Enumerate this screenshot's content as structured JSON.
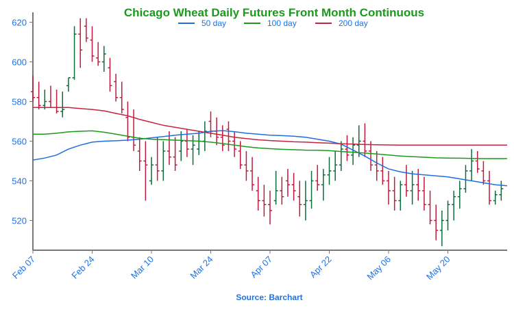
{
  "chart_data": {
    "type": "ohlc",
    "title": "Chicago Wheat Daily Futures Front Month Continuous",
    "source": "Source: Barchart",
    "ylim": [
      505,
      625
    ],
    "y_ticks": [
      520,
      540,
      560,
      580,
      600,
      620
    ],
    "x_range": [
      0,
      80
    ],
    "x_ticks": [
      {
        "label": "Feb 07",
        "x": 0
      },
      {
        "label": "Feb 24",
        "x": 10
      },
      {
        "label": "Mar 10",
        "x": 20
      },
      {
        "label": "Mar 24",
        "x": 30
      },
      {
        "label": "Apr 07",
        "x": 40
      },
      {
        "label": "Apr 22",
        "x": 50
      },
      {
        "label": "May 06",
        "x": 60
      },
      {
        "label": "May 20",
        "x": 70
      }
    ],
    "grid": false,
    "legend_position": "top-center",
    "colors": {
      "title": "#1a9a1a",
      "axis_text": "#1a73e8",
      "up_bar": "#0b6b3a",
      "down_bar": "#c0183c",
      "axis_line": "#777777",
      "source_text": "#1a73e8"
    },
    "series": [
      {
        "name": "50 day",
        "color": "#1a6ee0",
        "values": [
          [
            0,
            550.5
          ],
          [
            2,
            551.5
          ],
          [
            4,
            553
          ],
          [
            6,
            556
          ],
          [
            8,
            558
          ],
          [
            10,
            559.5
          ],
          [
            12,
            560
          ],
          [
            14,
            560.2
          ],
          [
            16,
            560.5
          ],
          [
            18,
            561
          ],
          [
            20,
            561.7
          ],
          [
            22,
            562.3
          ],
          [
            24,
            563
          ],
          [
            26,
            563.5
          ],
          [
            28,
            564
          ],
          [
            30,
            565
          ],
          [
            32,
            565.3
          ],
          [
            34,
            564.8
          ],
          [
            36,
            564
          ],
          [
            38,
            563.5
          ],
          [
            40,
            563
          ],
          [
            42,
            562.8
          ],
          [
            44,
            562.5
          ],
          [
            46,
            562
          ],
          [
            48,
            561
          ],
          [
            50,
            560
          ],
          [
            52,
            558.5
          ],
          [
            54,
            555.5
          ],
          [
            56,
            552.5
          ],
          [
            58,
            549
          ],
          [
            60,
            546
          ],
          [
            62,
            544.5
          ],
          [
            64,
            543.5
          ],
          [
            66,
            543
          ],
          [
            68,
            542.5
          ],
          [
            70,
            542
          ],
          [
            72,
            541
          ],
          [
            74,
            540
          ],
          [
            76,
            539
          ],
          [
            78,
            538
          ],
          [
            80,
            537.5
          ]
        ]
      },
      {
        "name": "100 day",
        "color": "#1a9a1a",
        "values": [
          [
            0,
            563.5
          ],
          [
            2,
            563.5
          ],
          [
            4,
            564
          ],
          [
            6,
            564.7
          ],
          [
            8,
            565
          ],
          [
            10,
            565.2
          ],
          [
            12,
            564.5
          ],
          [
            14,
            563.5
          ],
          [
            16,
            562.5
          ],
          [
            18,
            561.5
          ],
          [
            20,
            561
          ],
          [
            22,
            560.8
          ],
          [
            24,
            560.5
          ],
          [
            26,
            560.3
          ],
          [
            28,
            560
          ],
          [
            30,
            559.5
          ],
          [
            32,
            558.8
          ],
          [
            34,
            558
          ],
          [
            36,
            557.2
          ],
          [
            38,
            556.6
          ],
          [
            40,
            556.2
          ],
          [
            42,
            555.9
          ],
          [
            44,
            555.7
          ],
          [
            46,
            555.5
          ],
          [
            48,
            555.4
          ],
          [
            50,
            555.2
          ],
          [
            52,
            554.8
          ],
          [
            54,
            554.4
          ],
          [
            56,
            554
          ],
          [
            58,
            553.5
          ],
          [
            60,
            553
          ],
          [
            62,
            552.5
          ],
          [
            64,
            552.2
          ],
          [
            66,
            551.9
          ],
          [
            68,
            551.6
          ],
          [
            70,
            551.5
          ],
          [
            72,
            551.4
          ],
          [
            74,
            551.3
          ],
          [
            76,
            551.2
          ],
          [
            78,
            551.2
          ],
          [
            80,
            551.2
          ]
        ]
      },
      {
        "name": "200 day",
        "color": "#c8203f",
        "values": [
          [
            0,
            577
          ],
          [
            2,
            577
          ],
          [
            4,
            577
          ],
          [
            6,
            577
          ],
          [
            8,
            576.5
          ],
          [
            10,
            576
          ],
          [
            12,
            575.3
          ],
          [
            14,
            574
          ],
          [
            16,
            572.8
          ],
          [
            18,
            571
          ],
          [
            20,
            569.5
          ],
          [
            22,
            568
          ],
          [
            24,
            567
          ],
          [
            26,
            566
          ],
          [
            28,
            565
          ],
          [
            30,
            564
          ],
          [
            32,
            563
          ],
          [
            34,
            562
          ],
          [
            36,
            561.3
          ],
          [
            38,
            560.7
          ],
          [
            40,
            560.3
          ],
          [
            42,
            560
          ],
          [
            44,
            559.7
          ],
          [
            46,
            559.5
          ],
          [
            48,
            559.2
          ],
          [
            50,
            559
          ],
          [
            52,
            558.7
          ],
          [
            54,
            558.5
          ],
          [
            56,
            558.3
          ],
          [
            58,
            558.2
          ],
          [
            60,
            558.1
          ],
          [
            62,
            558
          ],
          [
            64,
            558
          ],
          [
            66,
            558
          ],
          [
            68,
            558
          ],
          [
            70,
            558
          ],
          [
            72,
            558
          ],
          [
            74,
            558
          ],
          [
            76,
            558
          ],
          [
            78,
            558
          ],
          [
            80,
            558
          ]
        ]
      }
    ],
    "ohlc": [
      [
        0,
        585,
        593,
        580,
        582
      ],
      [
        1,
        582,
        590,
        576,
        578
      ],
      [
        2,
        578,
        586,
        576,
        580
      ],
      [
        3,
        580,
        588,
        577,
        577
      ],
      [
        4,
        577,
        586,
        574,
        575
      ],
      [
        5,
        575,
        585,
        572,
        576
      ],
      [
        6,
        588,
        592,
        585,
        592
      ],
      [
        7,
        592,
        618,
        591,
        614
      ],
      [
        8,
        614,
        622,
        597,
        606
      ],
      [
        9,
        618,
        622,
        610,
        612
      ],
      [
        10,
        611,
        618,
        600,
        603
      ],
      [
        11,
        602,
        610,
        598,
        600
      ],
      [
        12,
        600,
        608,
        595,
        604
      ],
      [
        13,
        597,
        602,
        585,
        588
      ],
      [
        14,
        590,
        594,
        580,
        582
      ],
      [
        15,
        582,
        590,
        574,
        576
      ],
      [
        16,
        572,
        580,
        560,
        562
      ],
      [
        17,
        562,
        576,
        555,
        558
      ],
      [
        18,
        555,
        562,
        545,
        550
      ],
      [
        19,
        550,
        560,
        530,
        548
      ],
      [
        20,
        540,
        552,
        538,
        548
      ],
      [
        21,
        548,
        562,
        540,
        545
      ],
      [
        22,
        545,
        560,
        540,
        555
      ],
      [
        23,
        555,
        565,
        548,
        552
      ],
      [
        24,
        552,
        562,
        545,
        548
      ],
      [
        25,
        555,
        565,
        550,
        560
      ],
      [
        26,
        560,
        566,
        552,
        556
      ],
      [
        27,
        556,
        563,
        548,
        558
      ],
      [
        28,
        556,
        565,
        553,
        560
      ],
      [
        29,
        560,
        570,
        555,
        565
      ],
      [
        30,
        570,
        575,
        562,
        565
      ],
      [
        31,
        565,
        572,
        558,
        562
      ],
      [
        32,
        562,
        568,
        555,
        558
      ],
      [
        33,
        566,
        570,
        555,
        560
      ],
      [
        34,
        560,
        565,
        552,
        556
      ],
      [
        35,
        555,
        560,
        546,
        548
      ],
      [
        36,
        548,
        555,
        540,
        545
      ],
      [
        37,
        545,
        552,
        535,
        538
      ],
      [
        38,
        535,
        542,
        525,
        530
      ],
      [
        39,
        530,
        538,
        522,
        528
      ],
      [
        40,
        528,
        535,
        518,
        525
      ],
      [
        41,
        530,
        545,
        528,
        535
      ],
      [
        42,
        535,
        542,
        528,
        532
      ],
      [
        43,
        540,
        546,
        532,
        538
      ],
      [
        44,
        538,
        544,
        530,
        535
      ],
      [
        45,
        532,
        540,
        522,
        528
      ],
      [
        46,
        528,
        540,
        520,
        530
      ],
      [
        47,
        530,
        545,
        526,
        540
      ],
      [
        48,
        540,
        548,
        535,
        538
      ],
      [
        49,
        538,
        546,
        530,
        543
      ],
      [
        50,
        543,
        552,
        538,
        545
      ],
      [
        51,
        545,
        555,
        540,
        548
      ],
      [
        52,
        548,
        560,
        545,
        556
      ],
      [
        53,
        556,
        563,
        550,
        553
      ],
      [
        54,
        553,
        562,
        548,
        558
      ],
      [
        55,
        558,
        568,
        552,
        560
      ],
      [
        56,
        560,
        569,
        552,
        555
      ],
      [
        57,
        555,
        560,
        545,
        548
      ],
      [
        58,
        548,
        555,
        540,
        545
      ],
      [
        59,
        545,
        552,
        538,
        540
      ],
      [
        60,
        540,
        545,
        528,
        535
      ],
      [
        61,
        535,
        542,
        525,
        530
      ],
      [
        62,
        530,
        540,
        525,
        538
      ],
      [
        63,
        538,
        548,
        532,
        535
      ],
      [
        64,
        535,
        545,
        528,
        538
      ],
      [
        65,
        538,
        546,
        530,
        535
      ],
      [
        66,
        535,
        542,
        525,
        528
      ],
      [
        67,
        528,
        535,
        518,
        520
      ],
      [
        68,
        520,
        528,
        510,
        515
      ],
      [
        69,
        515,
        525,
        507,
        520
      ],
      [
        70,
        520,
        530,
        515,
        528
      ],
      [
        71,
        528,
        535,
        520,
        532
      ],
      [
        72,
        532,
        540,
        526,
        536
      ],
      [
        73,
        536,
        548,
        534,
        545
      ],
      [
        74,
        545,
        556,
        540,
        550
      ],
      [
        75,
        550,
        555,
        544,
        546
      ],
      [
        76,
        545,
        550,
        538,
        540
      ],
      [
        77,
        540,
        545,
        528,
        530
      ],
      [
        78,
        530,
        535,
        528,
        533
      ],
      [
        79,
        533,
        540,
        530,
        536
      ]
    ]
  }
}
